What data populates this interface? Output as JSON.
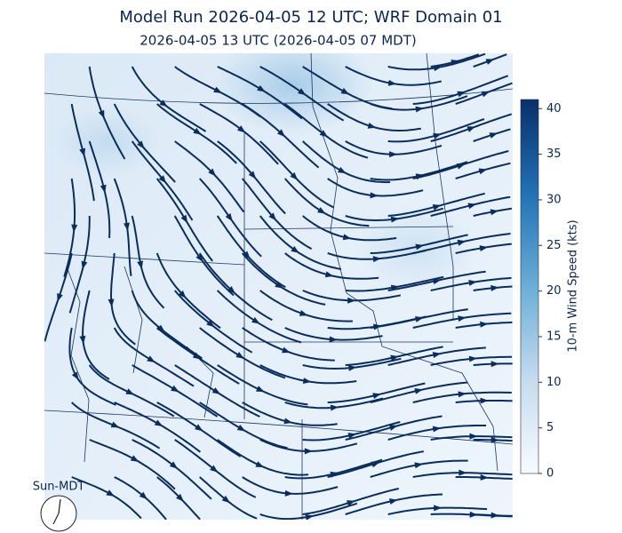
{
  "title": "Model Run 2026-04-05 12 UTC; WRF Domain 01",
  "subtitle": "2026-04-05 13 UTC  (2026-04-05 07 MDT)",
  "colorbar": {
    "label": "10-m Wind Speed (kts)",
    "lim": [
      0,
      41
    ],
    "ticks": [
      0,
      5,
      10,
      15,
      20,
      25,
      30,
      35,
      40
    ]
  },
  "clock_label": "Sun-MDT"
}
